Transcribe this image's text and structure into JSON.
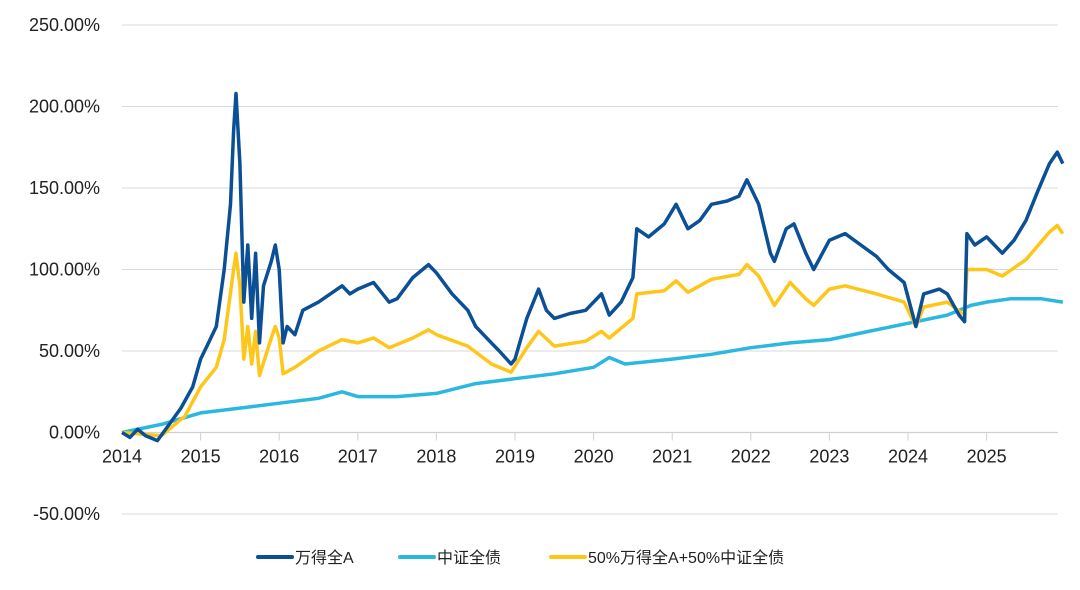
{
  "chart_data": {
    "type": "line",
    "title": "",
    "xlabel": "",
    "ylabel": "",
    "xlim": [
      2014,
      2026
    ],
    "ylim": [
      -50,
      250
    ],
    "grid": true,
    "legend_position": "bottom",
    "y_ticks": [
      "250.00%",
      "200.00%",
      "150.00%",
      "100.00%",
      "50.00%",
      "0.00%",
      "-50.00%"
    ],
    "y_tick_values": [
      250,
      200,
      150,
      100,
      50,
      0,
      -50
    ],
    "x_ticks": [
      "2014",
      "2015",
      "2016",
      "2017",
      "2018",
      "2019",
      "2020",
      "2021",
      "2022",
      "2023",
      "2024",
      "2025"
    ],
    "series": [
      {
        "name": "万得全A",
        "color": "#0B4F96",
        "x": [
          2014,
          2014.1,
          2014.2,
          2014.3,
          2014.45,
          2014.6,
          2014.75,
          2014.9,
          2015,
          2015.1,
          2015.2,
          2015.3,
          2015.38,
          2015.42,
          2015.45,
          2015.5,
          2015.55,
          2015.6,
          2015.65,
          2015.7,
          2015.75,
          2015.8,
          2015.9,
          2015.95,
          2016,
          2016.05,
          2016.1,
          2016.2,
          2016.3,
          2016.5,
          2016.8,
          2016.9,
          2017,
          2017.2,
          2017.4,
          2017.5,
          2017.7,
          2017.9,
          2018,
          2018.2,
          2018.4,
          2018.5,
          2018.7,
          2018.8,
          2018.95,
          2019,
          2019.15,
          2019.3,
          2019.4,
          2019.5,
          2019.7,
          2019.9,
          2020.1,
          2020.2,
          2020.35,
          2020.5,
          2020.55,
          2020.7,
          2020.9,
          2021.05,
          2021.2,
          2021.35,
          2021.5,
          2021.7,
          2021.85,
          2021.95,
          2022.1,
          2022.25,
          2022.3,
          2022.45,
          2022.55,
          2022.7,
          2022.8,
          2023,
          2023.2,
          2023.4,
          2023.6,
          2023.75,
          2023.95,
          2024.1,
          2024.2,
          2024.4,
          2024.5,
          2024.65,
          2024.72,
          2024.75,
          2024.85,
          2025,
          2025.2,
          2025.35,
          2025.5,
          2025.65,
          2025.8,
          2025.9,
          2025.97
        ],
        "y": [
          0,
          -3,
          2,
          -2,
          -5,
          5,
          15,
          28,
          45,
          55,
          65,
          100,
          140,
          185,
          208,
          165,
          80,
          115,
          70,
          110,
          55,
          90,
          105,
          115,
          100,
          55,
          65,
          60,
          75,
          80,
          90,
          85,
          88,
          92,
          80,
          82,
          95,
          103,
          98,
          85,
          75,
          65,
          55,
          50,
          42,
          45,
          70,
          88,
          75,
          70,
          73,
          75,
          85,
          72,
          80,
          95,
          125,
          120,
          128,
          140,
          125,
          130,
          140,
          142,
          145,
          155,
          140,
          110,
          105,
          125,
          128,
          110,
          100,
          118,
          122,
          115,
          108,
          100,
          92,
          65,
          85,
          88,
          85,
          72,
          68,
          122,
          115,
          120,
          110,
          118,
          130,
          148,
          165,
          172,
          165
        ]
      },
      {
        "name": "中证全债",
        "color": "#2BB8E0",
        "x": [
          2014,
          2014.5,
          2015,
          2015.5,
          2016,
          2016.5,
          2016.8,
          2017,
          2017.5,
          2018,
          2018.5,
          2019,
          2019.5,
          2020,
          2020.2,
          2020.4,
          2021,
          2021.5,
          2022,
          2022.5,
          2023,
          2023.5,
          2024,
          2024.5,
          2024.8,
          2025,
          2025.3,
          2025.7,
          2025.97
        ],
        "y": [
          0,
          5,
          12,
          15,
          18,
          21,
          25,
          22,
          22,
          24,
          30,
          33,
          36,
          40,
          46,
          42,
          45,
          48,
          52,
          55,
          57,
          62,
          67,
          72,
          78,
          80,
          82,
          82,
          80
        ]
      },
      {
        "name": "50%万得全A+50%中证全债",
        "color": "#FFC61A",
        "x": [
          2014,
          2014.5,
          2014.8,
          2015,
          2015.2,
          2015.3,
          2015.42,
          2015.45,
          2015.5,
          2015.55,
          2015.6,
          2015.65,
          2015.7,
          2015.75,
          2015.9,
          2015.95,
          2016,
          2016.05,
          2016.2,
          2016.5,
          2016.8,
          2017,
          2017.2,
          2017.4,
          2017.7,
          2017.9,
          2018,
          2018.4,
          2018.7,
          2018.95,
          2019.15,
          2019.3,
          2019.5,
          2019.9,
          2020.1,
          2020.2,
          2020.5,
          2020.55,
          2020.9,
          2021.05,
          2021.2,
          2021.5,
          2021.85,
          2021.95,
          2022.1,
          2022.3,
          2022.5,
          2022.7,
          2022.8,
          2023,
          2023.2,
          2023.6,
          2023.95,
          2024.1,
          2024.2,
          2024.5,
          2024.72,
          2024.75,
          2025,
          2025.2,
          2025.5,
          2025.8,
          2025.9,
          2025.97
        ],
        "y": [
          0,
          -2,
          10,
          28,
          40,
          57,
          100,
          110,
          90,
          45,
          65,
          42,
          62,
          35,
          58,
          65,
          58,
          36,
          40,
          50,
          57,
          55,
          58,
          52,
          58,
          63,
          60,
          53,
          42,
          37,
          52,
          62,
          53,
          56,
          62,
          58,
          70,
          85,
          87,
          93,
          86,
          94,
          97,
          103,
          96,
          78,
          92,
          82,
          78,
          88,
          90,
          85,
          80,
          65,
          77,
          80,
          72,
          100,
          100,
          96,
          106,
          123,
          127,
          122
        ]
      }
    ]
  }
}
